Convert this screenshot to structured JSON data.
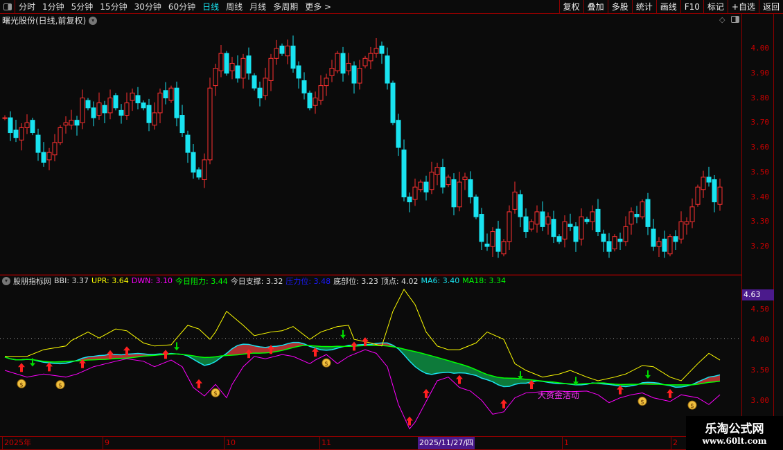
{
  "toolbar": {
    "periods": [
      "分时",
      "1分钟",
      "5分钟",
      "15分钟",
      "30分钟",
      "60分钟",
      "日线",
      "周线",
      "月线",
      "多周期",
      "更多 >"
    ],
    "active": "日线",
    "right_buttons": [
      "复权",
      "叠加",
      "多股",
      "统计",
      "画线",
      "F10",
      "标记",
      "+自选",
      "返回"
    ]
  },
  "chart_title": "曙光股份(日线,前复权)",
  "price_axis": {
    "ticks": [
      "4.00",
      "3.90",
      "3.80",
      "3.70",
      "3.60",
      "3.50",
      "3.40",
      "3.30",
      "3.20"
    ]
  },
  "indicator_axis": {
    "ticks": [
      "4.50",
      "4.00",
      "3.50",
      "3.00"
    ],
    "current": "4.63"
  },
  "indicator_header": [
    {
      "text": "股朋指标网",
      "color": "#dddddd"
    },
    {
      "text": "BBI: 3.37",
      "color": "#dddddd"
    },
    {
      "text": "UPR: 3.64",
      "color": "#ffff00"
    },
    {
      "text": "DWN: 3.10",
      "color": "#ff00ff"
    },
    {
      "text": "今日阻力: 3.44",
      "color": "#00ff00"
    },
    {
      "text": "今日支撑: 3.32",
      "color": "#dddddd"
    },
    {
      "text": "压力位: 3.48",
      "color": "#1a1aff"
    },
    {
      "text": "底部位: 3.23",
      "color": "#dddddd"
    },
    {
      "text": "顶点: 4.02",
      "color": "#dddddd"
    },
    {
      "text": "MA6: 3.40",
      "color": "#19e3f0"
    },
    {
      "text": "MA18: 3.34",
      "color": "#00ff00"
    }
  ],
  "date_axis": {
    "labels": [
      "2025年",
      "9",
      "10",
      "11",
      "1",
      "2"
    ],
    "selected": "2025/11/27/四"
  },
  "annotation": "大资金活动",
  "watermark": {
    "name": "乐淘公式网",
    "url": "www.60lt.com"
  },
  "colors": {
    "up": "#ff3030",
    "down": "#19e3f0",
    "upr": "#ffff00",
    "dwn": "#ff00ff",
    "band_down": "#0d7a3a",
    "band_up": "#b03030",
    "grid": "#8b0000"
  },
  "chart_data": {
    "type": "candlestick",
    "close": [
      3.72,
      3.66,
      3.64,
      3.68,
      3.7,
      3.66,
      3.58,
      3.54,
      3.58,
      3.62,
      3.68,
      3.7,
      3.71,
      3.69,
      3.8,
      3.76,
      3.72,
      3.78,
      3.74,
      3.8,
      3.76,
      3.73,
      3.78,
      3.82,
      3.78,
      3.76,
      3.7,
      3.74,
      3.82,
      3.8,
      3.84,
      3.72,
      3.66,
      3.58,
      3.5,
      3.48,
      3.55,
      3.84,
      3.92,
      3.98,
      3.9,
      3.94,
      3.88,
      3.96,
      3.9,
      3.84,
      3.8,
      3.88,
      3.96,
      4.0,
      3.98,
      4.01,
      3.92,
      3.88,
      3.82,
      3.76,
      3.8,
      3.85,
      3.88,
      3.92,
      3.98,
      3.9,
      3.94,
      3.86,
      3.92,
      3.96,
      3.98,
      4.0,
      3.98,
      3.86,
      3.7,
      3.6,
      3.4,
      3.38,
      3.44,
      3.46,
      3.42,
      3.5,
      3.52,
      3.44,
      3.48,
      3.36,
      3.46,
      3.48,
      3.4,
      3.32,
      3.22,
      3.2,
      3.26,
      3.18,
      3.22,
      3.34,
      3.42,
      3.32,
      3.26,
      3.3,
      3.34,
      3.28,
      3.32,
      3.24,
      3.22,
      3.3,
      3.28,
      3.22,
      3.32,
      3.3,
      3.34,
      3.26,
      3.22,
      3.18,
      3.24,
      3.22,
      3.28,
      3.34,
      3.32,
      3.38,
      3.28,
      3.2,
      3.22,
      3.18,
      3.24,
      3.22,
      3.3,
      3.3,
      3.36,
      3.44,
      3.48,
      3.46,
      3.38,
      3.44
    ],
    "upr": [
      [
        0,
        3.73
      ],
      [
        4,
        3.73
      ],
      [
        7,
        3.84
      ],
      [
        11,
        3.9
      ],
      [
        12,
        3.99
      ],
      [
        15,
        4.13
      ],
      [
        17,
        4.03
      ],
      [
        20,
        4.18
      ],
      [
        22,
        4.15
      ],
      [
        25,
        3.95
      ],
      [
        27,
        3.9
      ],
      [
        30,
        3.92
      ],
      [
        31,
        4.03
      ],
      [
        33,
        4.24
      ],
      [
        35,
        4.18
      ],
      [
        37,
        4.01
      ],
      [
        38,
        4.13
      ],
      [
        40,
        4.47
      ],
      [
        43,
        4.24
      ],
      [
        45,
        4.07
      ],
      [
        48,
        4.13
      ],
      [
        50,
        4.15
      ],
      [
        52,
        4.22
      ],
      [
        55,
        4.01
      ],
      [
        57,
        4.13
      ],
      [
        60,
        4.22
      ],
      [
        62,
        4.24
      ],
      [
        63,
        4.01
      ],
      [
        66,
        3.95
      ],
      [
        68,
        3.9
      ],
      [
        70,
        4.47
      ],
      [
        72,
        4.83
      ],
      [
        74,
        4.58
      ],
      [
        76,
        4.13
      ],
      [
        78,
        3.9
      ],
      [
        80,
        3.84
      ],
      [
        82,
        3.84
      ],
      [
        85,
        3.95
      ],
      [
        87,
        4.13
      ],
      [
        90,
        4.01
      ],
      [
        92,
        3.61
      ],
      [
        94,
        3.5
      ],
      [
        97,
        3.39
      ],
      [
        100,
        3.44
      ],
      [
        102,
        3.5
      ],
      [
        105,
        3.39
      ],
      [
        107,
        3.33
      ],
      [
        110,
        3.39
      ],
      [
        112,
        3.44
      ],
      [
        115,
        3.58
      ],
      [
        117,
        3.56
      ],
      [
        120,
        3.39
      ],
      [
        122,
        3.33
      ],
      [
        125,
        3.61
      ],
      [
        127,
        3.78
      ],
      [
        129,
        3.67
      ]
    ],
    "dwn": [
      [
        0,
        3.5
      ],
      [
        4,
        3.39
      ],
      [
        7,
        3.44
      ],
      [
        11,
        3.39
      ],
      [
        13,
        3.44
      ],
      [
        16,
        3.56
      ],
      [
        20,
        3.65
      ],
      [
        22,
        3.69
      ],
      [
        25,
        3.65
      ],
      [
        27,
        3.56
      ],
      [
        30,
        3.67
      ],
      [
        32,
        3.56
      ],
      [
        34,
        3.22
      ],
      [
        36,
        3.08
      ],
      [
        38,
        3.27
      ],
      [
        40,
        3.05
      ],
      [
        41,
        3.27
      ],
      [
        43,
        3.56
      ],
      [
        45,
        3.73
      ],
      [
        47,
        3.69
      ],
      [
        50,
        3.76
      ],
      [
        52,
        3.73
      ],
      [
        55,
        3.61
      ],
      [
        56,
        3.67
      ],
      [
        58,
        3.76
      ],
      [
        60,
        3.61
      ],
      [
        62,
        3.73
      ],
      [
        65,
        3.84
      ],
      [
        67,
        3.78
      ],
      [
        69,
        3.56
      ],
      [
        71,
        2.94
      ],
      [
        73,
        2.54
      ],
      [
        74,
        2.65
      ],
      [
        76,
        2.99
      ],
      [
        78,
        3.33
      ],
      [
        80,
        3.39
      ],
      [
        82,
        3.22
      ],
      [
        84,
        3.16
      ],
      [
        86,
        3.01
      ],
      [
        88,
        2.78
      ],
      [
        90,
        2.82
      ],
      [
        92,
        3.05
      ],
      [
        94,
        3.13
      ],
      [
        97,
        3.15
      ],
      [
        100,
        3.16
      ],
      [
        102,
        3.15
      ],
      [
        105,
        3.16
      ],
      [
        107,
        3.1
      ],
      [
        109,
        2.97
      ],
      [
        111,
        3.05
      ],
      [
        113,
        3.1
      ],
      [
        115,
        3.13
      ],
      [
        117,
        3.05
      ],
      [
        120,
        2.99
      ],
      [
        122,
        3.1
      ],
      [
        125,
        3.05
      ],
      [
        127,
        2.94
      ],
      [
        129,
        3.1
      ]
    ],
    "sell_signals": [
      5,
      31,
      61,
      93,
      103,
      116
    ],
    "buy_signals": [
      3,
      8,
      14,
      19,
      22,
      29,
      35,
      44,
      48,
      56,
      63,
      65,
      73,
      76,
      82,
      90,
      95,
      111,
      120
    ],
    "money_bags": [
      3,
      10,
      38,
      58,
      115,
      124
    ],
    "price_range": [
      3.14,
      4.08
    ],
    "indicator_range": [
      2.4,
      4.9
    ]
  }
}
